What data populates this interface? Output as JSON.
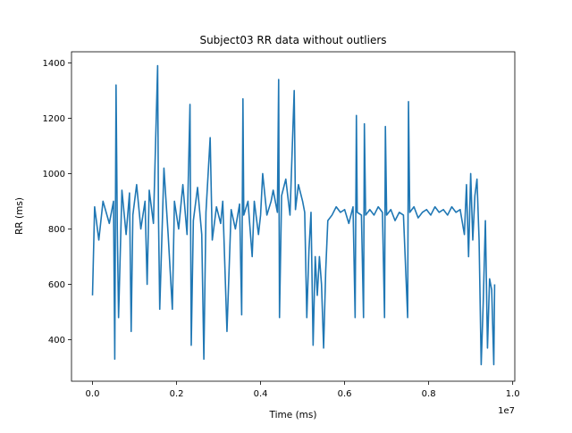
{
  "chart_data": {
    "type": "line",
    "title": "Subject03 RR data without outliers",
    "xlabel": "Time (ms)",
    "ylabel": "RR (ms)",
    "x_offset_label": "1e7",
    "x_scale": 10000000,
    "xlim": [
      -500000,
      10050000
    ],
    "ylim": [
      250,
      1440
    ],
    "x_ticks": [
      0,
      2000000,
      4000000,
      6000000,
      8000000,
      10000000
    ],
    "x_tick_labels": [
      "0.0",
      "0.2",
      "0.4",
      "0.6",
      "0.8",
      "1.0"
    ],
    "y_ticks": [
      400,
      600,
      800,
      1000,
      1200,
      1400
    ],
    "y_tick_labels": [
      "400",
      "600",
      "800",
      "1000",
      "1200",
      "1400"
    ],
    "grid": false,
    "line_color": "#1f77b4",
    "series": [
      {
        "values": [
          [
            0,
            560
          ],
          [
            50000,
            880
          ],
          [
            150000,
            760
          ],
          [
            250000,
            900
          ],
          [
            400000,
            820
          ],
          [
            500000,
            900
          ],
          [
            530000,
            330
          ],
          [
            560000,
            1320
          ],
          [
            590000,
            800
          ],
          [
            620000,
            480
          ],
          [
            700000,
            940
          ],
          [
            800000,
            780
          ],
          [
            880000,
            930
          ],
          [
            920000,
            430
          ],
          [
            960000,
            850
          ],
          [
            1050000,
            960
          ],
          [
            1150000,
            800
          ],
          [
            1250000,
            900
          ],
          [
            1300000,
            600
          ],
          [
            1350000,
            940
          ],
          [
            1450000,
            820
          ],
          [
            1550000,
            1390
          ],
          [
            1570000,
            850
          ],
          [
            1600000,
            510
          ],
          [
            1700000,
            1020
          ],
          [
            1800000,
            780
          ],
          [
            1900000,
            510
          ],
          [
            1950000,
            900
          ],
          [
            2050000,
            800
          ],
          [
            2150000,
            960
          ],
          [
            2250000,
            780
          ],
          [
            2320000,
            1250
          ],
          [
            2350000,
            380
          ],
          [
            2400000,
            830
          ],
          [
            2500000,
            950
          ],
          [
            2600000,
            780
          ],
          [
            2650000,
            330
          ],
          [
            2700000,
            860
          ],
          [
            2800000,
            1130
          ],
          [
            2850000,
            760
          ],
          [
            2950000,
            880
          ],
          [
            3050000,
            820
          ],
          [
            3100000,
            900
          ],
          [
            3200000,
            430
          ],
          [
            3300000,
            870
          ],
          [
            3400000,
            800
          ],
          [
            3500000,
            890
          ],
          [
            3550000,
            490
          ],
          [
            3580000,
            1270
          ],
          [
            3600000,
            850
          ],
          [
            3700000,
            900
          ],
          [
            3800000,
            700
          ],
          [
            3850000,
            900
          ],
          [
            3950000,
            780
          ],
          [
            4000000,
            850
          ],
          [
            4050000,
            1000
          ],
          [
            4150000,
            850
          ],
          [
            4250000,
            900
          ],
          [
            4300000,
            940
          ],
          [
            4400000,
            860
          ],
          [
            4430000,
            1340
          ],
          [
            4450000,
            480
          ],
          [
            4500000,
            920
          ],
          [
            4600000,
            980
          ],
          [
            4700000,
            850
          ],
          [
            4800000,
            1300
          ],
          [
            4830000,
            870
          ],
          [
            4900000,
            960
          ],
          [
            5000000,
            900
          ],
          [
            5050000,
            860
          ],
          [
            5100000,
            480
          ],
          [
            5150000,
            720
          ],
          [
            5200000,
            860
          ],
          [
            5250000,
            380
          ],
          [
            5300000,
            700
          ],
          [
            5350000,
            560
          ],
          [
            5400000,
            700
          ],
          [
            5450000,
            600
          ],
          [
            5500000,
            370
          ],
          [
            5550000,
            650
          ],
          [
            5600000,
            830
          ],
          [
            5700000,
            850
          ],
          [
            5800000,
            880
          ],
          [
            5900000,
            860
          ],
          [
            6000000,
            870
          ],
          [
            6100000,
            820
          ],
          [
            6200000,
            880
          ],
          [
            6250000,
            480
          ],
          [
            6280000,
            1210
          ],
          [
            6300000,
            860
          ],
          [
            6400000,
            850
          ],
          [
            6450000,
            480
          ],
          [
            6470000,
            1180
          ],
          [
            6500000,
            850
          ],
          [
            6600000,
            870
          ],
          [
            6700000,
            850
          ],
          [
            6800000,
            880
          ],
          [
            6900000,
            860
          ],
          [
            6950000,
            480
          ],
          [
            6970000,
            1170
          ],
          [
            7000000,
            850
          ],
          [
            7100000,
            870
          ],
          [
            7200000,
            830
          ],
          [
            7300000,
            860
          ],
          [
            7400000,
            850
          ],
          [
            7500000,
            480
          ],
          [
            7520000,
            1260
          ],
          [
            7550000,
            860
          ],
          [
            7650000,
            880
          ],
          [
            7750000,
            840
          ],
          [
            7850000,
            860
          ],
          [
            7950000,
            870
          ],
          [
            8050000,
            850
          ],
          [
            8150000,
            880
          ],
          [
            8250000,
            860
          ],
          [
            8350000,
            870
          ],
          [
            8450000,
            850
          ],
          [
            8550000,
            880
          ],
          [
            8650000,
            860
          ],
          [
            8750000,
            870
          ],
          [
            8850000,
            780
          ],
          [
            8900000,
            960
          ],
          [
            8950000,
            700
          ],
          [
            9000000,
            1000
          ],
          [
            9050000,
            760
          ],
          [
            9100000,
            920
          ],
          [
            9150000,
            980
          ],
          [
            9200000,
            760
          ],
          [
            9250000,
            310
          ],
          [
            9300000,
            540
          ],
          [
            9350000,
            830
          ],
          [
            9400000,
            370
          ],
          [
            9450000,
            620
          ],
          [
            9500000,
            580
          ],
          [
            9550000,
            310
          ],
          [
            9570000,
            600
          ]
        ]
      }
    ]
  }
}
